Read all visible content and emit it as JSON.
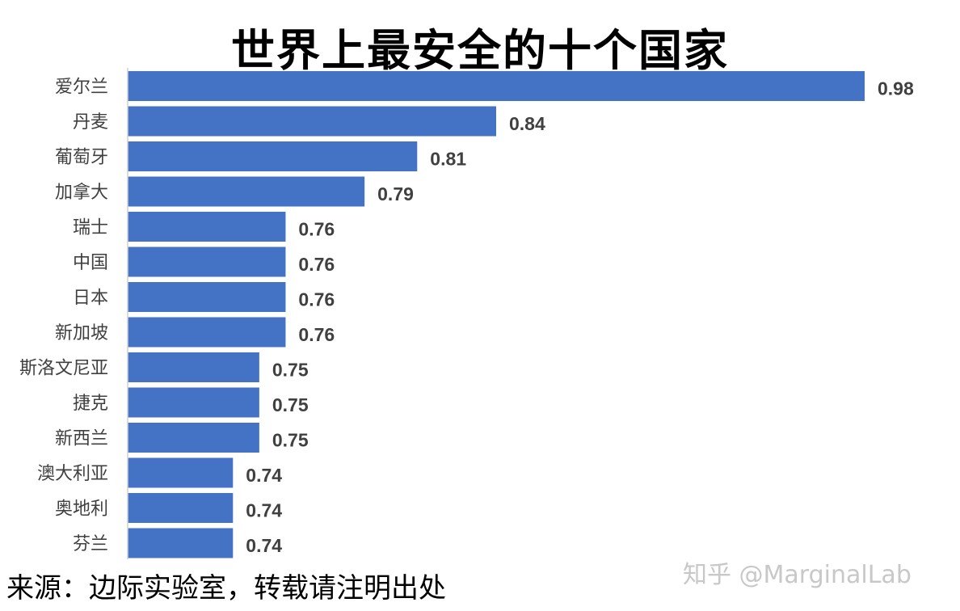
{
  "chart_data": {
    "type": "bar",
    "orientation": "horizontal",
    "title": "世界上最安全的十个国家",
    "categories": [
      "爱尔兰",
      "丹麦",
      "葡萄牙",
      "加拿大",
      "瑞士",
      "中国",
      "日本",
      "新加坡",
      "斯洛文尼亚",
      "捷克",
      "新西兰",
      "澳大利亚",
      "奥地利",
      "芬兰"
    ],
    "values": [
      0.98,
      0.84,
      0.81,
      0.79,
      0.76,
      0.76,
      0.76,
      0.76,
      0.75,
      0.75,
      0.75,
      0.74,
      0.74,
      0.74
    ],
    "data_labels": [
      "0.98",
      "0.84",
      "0.81",
      "0.79",
      "0.76",
      "0.76",
      "0.76",
      "0.76",
      "0.75",
      "0.75",
      "0.75",
      "0.74",
      "0.74",
      "0.74"
    ],
    "xlim": [
      0.7,
      0.98
    ],
    "xlabel": "",
    "ylabel": "",
    "grid": false,
    "bar_color": "#4472C4"
  },
  "footer": {
    "source": "来源：边际实验室，转载请注明出处",
    "watermark": "知乎 @MarginalLab"
  }
}
